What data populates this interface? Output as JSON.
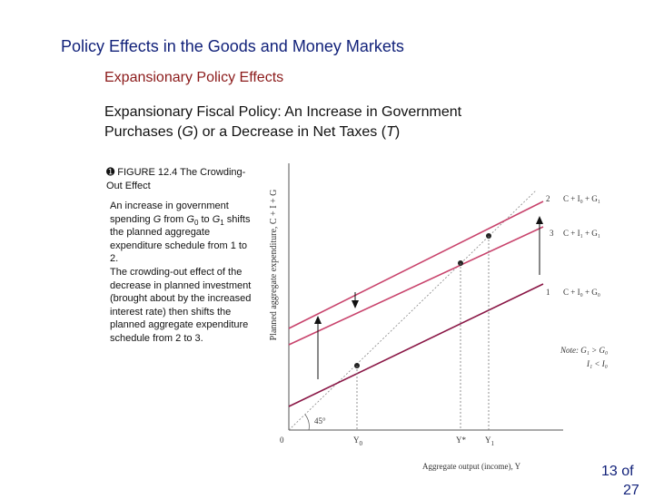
{
  "slide": {
    "title": "Policy Effects in the Goods and Money Markets",
    "subtitle": "Expansionary Policy Effects",
    "heading": {
      "part1": "Expansionary Fiscal Policy: An Increase in Government Purchases (",
      "g": "G",
      "part2": ") or a Decrease in Net Taxes (",
      "t": "T",
      "part3": ")"
    },
    "page_number": "13 of",
    "page_number_cont": "27"
  },
  "figure": {
    "bullet": "➊",
    "caption": "FIGURE 12.4  The Crowding-Out Effect",
    "explanation": {
      "p1_a": "An increase in government spending ",
      "p1_g": "G",
      "p1_b": " from ",
      "p1_g0": "G",
      "p1_g0_sub": "0",
      "p1_c": " to ",
      "p1_g1": "G",
      "p1_g1_sub": "1",
      "p1_d": " shifts the planned aggregate expenditure schedule from 1 to 2.",
      "p2": "The crowding-out effect of the decrease in planned investment (brought about by the increased interest rate) then shifts the planned aggregate expenditure schedule from 2 to 3."
    }
  },
  "diagram": {
    "y_axis_label": "Planned aggregate expenditure, C + I + G",
    "x_axis_label": "Aggregate output (income), Y",
    "origin_label": "0",
    "angle_label": "45°",
    "x_ticks": [
      "Y",
      "Y*",
      "Y"
    ],
    "x_tick_subs": [
      "0",
      "",
      "1"
    ],
    "lines": [
      {
        "number": "2",
        "label": "C + I₀ + G₁",
        "color": "#c8436c"
      },
      {
        "number": "3",
        "label": "C + I₁ + G₁",
        "color": "#c8436c"
      },
      {
        "number": "1",
        "label": "C + I₀ + G₀",
        "color": "#8a1746"
      }
    ],
    "note": {
      "line1": "Note: G₁ > G₀",
      "line2": "I₁ < I₀"
    }
  }
}
